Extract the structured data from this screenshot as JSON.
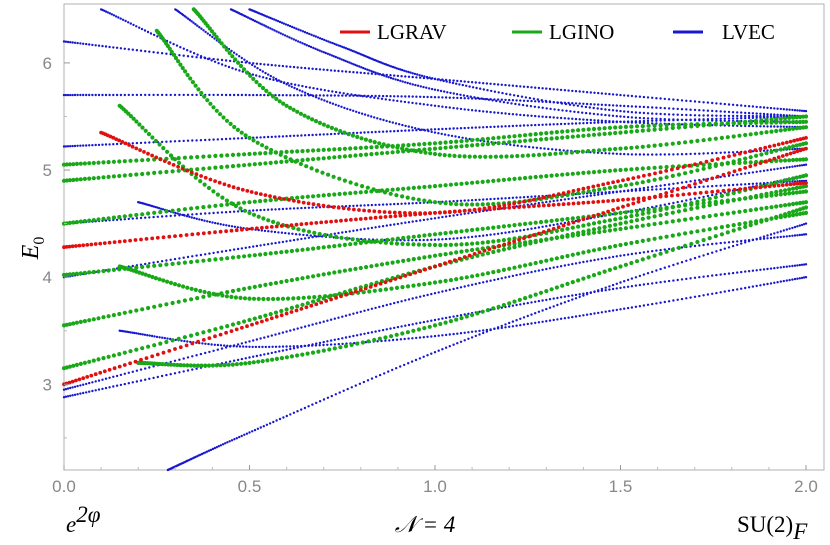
{
  "chart_data": {
    "type": "scatter",
    "xlim": [
      0.0,
      2.0
    ],
    "ylim": [
      2.2,
      6.55
    ],
    "x_ticks": [
      "0.0",
      "0.5",
      "1.0",
      "1.5",
      "2.0"
    ],
    "y_ticks": [
      "3",
      "4",
      "5",
      "6"
    ],
    "ylabel": "E",
    "ylabel_sub": "0",
    "bottom_left_label": "e",
    "bottom_left_sup": "2φ",
    "bottom_center_label": "𝒩 = 4",
    "bottom_right_label": "SU(2)",
    "bottom_right_sub": "F",
    "legend_position": "top-right",
    "grid": false,
    "series": [
      {
        "name": "LGRAV",
        "color": "#e01010",
        "curves": [
          {
            "x": [
              0.0,
              0.5,
              1.0,
              1.5,
              2.0
            ],
            "y": [
              3.0,
              3.55,
              4.1,
              4.65,
              5.2
            ]
          },
          {
            "x": [
              0.0,
              0.5,
              1.0,
              1.5,
              2.0
            ],
            "y": [
              4.28,
              4.45,
              4.6,
              4.72,
              4.88
            ]
          },
          {
            "x": [
              0.1,
              0.5,
              1.0,
              1.5,
              2.0
            ],
            "y": [
              5.35,
              4.8,
              4.6,
              4.9,
              5.3
            ]
          }
        ]
      },
      {
        "name": "LGINO",
        "color": "#18a818",
        "curves": [
          {
            "x": [
              0.0,
              0.5,
              1.0,
              1.5,
              2.0
            ],
            "y": [
              3.15,
              3.6,
              4.1,
              4.5,
              4.85
            ]
          },
          {
            "x": [
              0.0,
              0.5,
              1.0,
              1.5,
              2.0
            ],
            "y": [
              3.55,
              3.9,
              4.2,
              4.45,
              4.7
            ]
          },
          {
            "x": [
              0.0,
              0.5,
              1.0,
              1.5,
              2.0
            ],
            "y": [
              4.02,
              4.2,
              4.4,
              4.6,
              4.8
            ]
          },
          {
            "x": [
              0.0,
              0.5,
              1.0,
              1.5,
              2.0
            ],
            "y": [
              4.5,
              4.7,
              4.85,
              5.0,
              5.1
            ]
          },
          {
            "x": [
              0.0,
              0.5,
              1.0,
              1.5,
              2.0
            ],
            "y": [
              4.9,
              5.05,
              5.2,
              5.35,
              5.5
            ]
          },
          {
            "x": [
              0.0,
              0.5,
              1.0,
              1.5,
              2.0
            ],
            "y": [
              5.05,
              5.15,
              5.25,
              5.4,
              5.45
            ]
          },
          {
            "x": [
              0.2,
              0.5,
              1.0,
              1.5,
              2.0
            ],
            "y": [
              3.2,
              3.2,
              3.55,
              4.1,
              4.65
            ]
          },
          {
            "x": [
              0.15,
              0.5,
              1.0,
              1.5,
              2.0
            ],
            "y": [
              4.1,
              3.8,
              3.95,
              4.3,
              4.6
            ]
          },
          {
            "x": [
              0.15,
              0.5,
              1.0,
              1.5,
              2.0
            ],
            "y": [
              5.6,
              4.6,
              4.3,
              4.55,
              4.95
            ]
          },
          {
            "x": [
              0.25,
              0.5,
              1.0,
              1.5,
              2.0
            ],
            "y": [
              6.3,
              5.3,
              4.7,
              4.85,
              5.25
            ]
          },
          {
            "x": [
              0.35,
              0.6,
              1.0,
              1.5,
              2.0
            ],
            "y": [
              6.5,
              5.6,
              5.15,
              5.2,
              5.4
            ]
          }
        ]
      },
      {
        "name": "LVEC",
        "color": "#1818d0",
        "curves": [
          {
            "x": [
              0.0,
              0.5,
              1.0,
              1.5,
              2.0
            ],
            "y": [
              2.88,
              3.25,
              3.6,
              3.9,
              4.12
            ]
          },
          {
            "x": [
              0.0,
              0.5,
              1.0,
              1.5,
              2.0
            ],
            "y": [
              2.95,
              3.4,
              3.85,
              4.2,
              4.4
            ]
          },
          {
            "x": [
              0.0,
              0.5,
              1.0,
              1.5,
              2.0
            ],
            "y": [
              4.0,
              4.28,
              4.55,
              4.8,
              5.05
            ]
          },
          {
            "x": [
              0.0,
              0.5,
              1.0,
              1.5,
              2.0
            ],
            "y": [
              5.22,
              5.3,
              5.38,
              5.45,
              5.5
            ]
          },
          {
            "x": [
              0.0,
              0.5,
              1.0,
              1.5,
              2.0
            ],
            "y": [
              5.7,
              5.7,
              5.68,
              5.6,
              5.5
            ]
          },
          {
            "x": [
              0.0,
              0.5,
              1.0,
              1.5,
              2.0
            ],
            "y": [
              6.2,
              6.0,
              5.85,
              5.7,
              5.55
            ]
          },
          {
            "x": [
              0.0,
              0.5,
              1.0,
              1.5,
              2.0
            ],
            "y": [
              4.5,
              4.62,
              4.7,
              4.8,
              4.9
            ]
          },
          {
            "x": [
              0.1,
              0.5,
              1.0,
              1.5,
              2.0
            ],
            "y": [
              6.5,
              5.9,
              5.6,
              5.45,
              5.4
            ]
          },
          {
            "x": [
              0.15,
              0.5,
              1.0,
              1.5,
              2.0
            ],
            "y": [
              3.5,
              3.35,
              3.45,
              3.7,
              4.0
            ]
          },
          {
            "x": [
              0.2,
              0.5,
              1.0,
              1.5,
              2.0
            ],
            "y": [
              4.7,
              4.45,
              4.35,
              4.6,
              4.95
            ]
          },
          {
            "x": [
              0.3,
              0.6,
              1.0,
              1.5,
              2.0
            ],
            "y": [
              6.5,
              5.8,
              5.35,
              5.15,
              5.2
            ]
          },
          {
            "x": [
              0.45,
              0.7,
              1.0,
              1.5,
              2.0
            ],
            "y": [
              6.5,
              6.1,
              5.75,
              5.5,
              5.45
            ]
          },
          {
            "x": [
              0.28,
              0.5,
              1.0,
              1.5,
              2.0
            ],
            "y": [
              2.2,
              2.55,
              3.3,
              3.95,
              4.5
            ]
          },
          {
            "x": [
              0.5,
              0.75,
              1.0,
              1.5,
              2.0
            ],
            "y": [
              6.5,
              6.15,
              5.85,
              5.55,
              5.5
            ]
          }
        ]
      }
    ]
  }
}
